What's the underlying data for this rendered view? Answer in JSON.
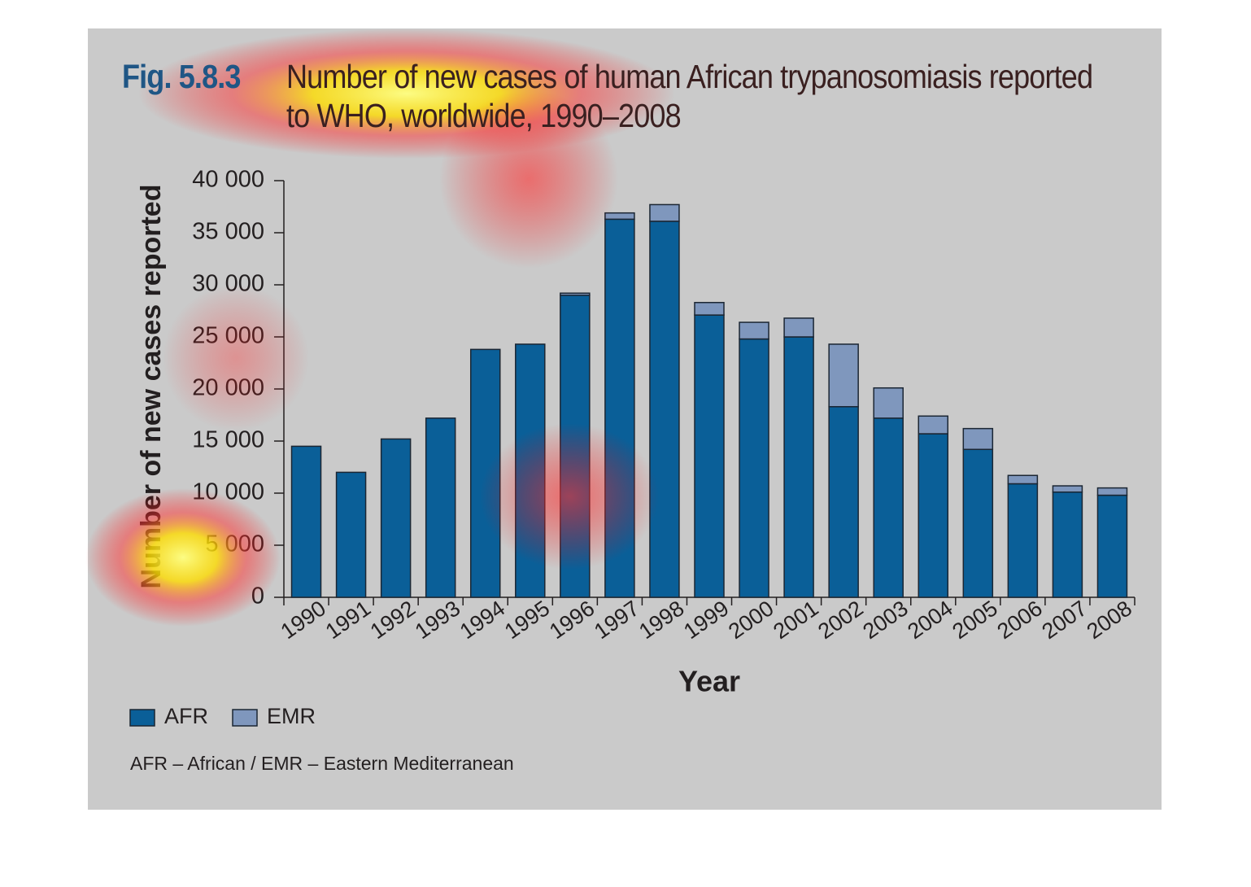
{
  "chart_data": {
    "type": "stacked_bar",
    "figure_label": "Fig. 5.8.3",
    "title": "Number of new cases of human African trypanosomiasis reported to WHO, worldwide, 1990–2008",
    "y_label": "Number of new cases reported",
    "x_label": "Year",
    "note": "AFR – African / EMR – Eastern Mediterranean",
    "categories": [
      "1990",
      "1991",
      "1992",
      "1993",
      "1994",
      "1995",
      "1996",
      "1997",
      "1998",
      "1999",
      "2000",
      "2001",
      "2002",
      "2003",
      "2004",
      "2005",
      "2006",
      "2007",
      "2008"
    ],
    "series": [
      {
        "name": "AFR",
        "color": "#0a5f98",
        "values": [
          14500,
          12000,
          15200,
          17200,
          23800,
          24300,
          29000,
          36300,
          36100,
          27100,
          24800,
          25000,
          18300,
          17200,
          15700,
          14200,
          10900,
          10100,
          9800
        ]
      },
      {
        "name": "EMR",
        "color": "#7f97bd",
        "values": [
          0,
          0,
          0,
          0,
          0,
          0,
          200,
          600,
          1600,
          1200,
          1600,
          1800,
          6000,
          2900,
          1700,
          2000,
          800,
          600,
          700
        ]
      }
    ],
    "ylim": [
      0,
      40000
    ],
    "yticks": [
      0,
      {
        "value": 5000,
        "label": "5 000"
      },
      {
        "value": 10000,
        "label": "10 000"
      },
      {
        "value": 15000,
        "label": "15 000"
      },
      {
        "value": 20000,
        "label": "20 000"
      },
      {
        "value": 25000,
        "label": "25 000"
      },
      {
        "value": 30000,
        "label": "30 000"
      },
      {
        "value": 35000,
        "label": "35 000"
      },
      {
        "value": 40000,
        "label": "40 000"
      }
    ],
    "legend": "bottom-left"
  }
}
